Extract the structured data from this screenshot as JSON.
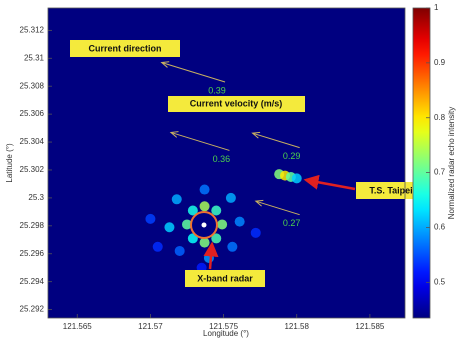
{
  "chart_data": {
    "type": "heatmap",
    "xlabel": "Longitude (°)",
    "ylabel": "Latitude (°)",
    "colorbar_label": "Normalized radar echo intensity",
    "colormap": "jet",
    "xlim": [
      121.563,
      121.5874
    ],
    "ylim": [
      25.2914,
      25.3136
    ],
    "xticks": [
      121.565,
      121.57,
      121.575,
      121.58,
      121.585
    ],
    "yticks": [
      25.292,
      25.294,
      25.296,
      25.298,
      25.3,
      25.302,
      25.304,
      25.306,
      25.308,
      25.31,
      25.312
    ],
    "clim": [
      0.435,
      1
    ],
    "cticks": [
      0.5,
      0.6,
      0.7,
      0.8,
      0.9,
      1
    ],
    "echo": {
      "x": [
        121.5749,
        121.5745,
        121.5737,
        121.5729,
        121.5725,
        121.5729,
        121.5737,
        121.5745,
        121.5761,
        121.5755,
        121.5737,
        121.5718,
        121.5713,
        121.572,
        121.574,
        121.5756,
        121.57,
        121.5772,
        121.5735,
        121.5705,
        121.5788,
        121.5792,
        121.5796,
        121.58
      ],
      "y": [
        25.2981,
        25.2991,
        25.2994,
        25.2991,
        25.2981,
        25.2971,
        25.2968,
        25.2971,
        25.2983,
        25.3,
        25.3006,
        25.2999,
        25.2979,
        25.2962,
        25.2957,
        25.2965,
        25.2985,
        25.2975,
        25.295,
        25.2965,
        25.3017,
        25.3016,
        25.3015,
        25.3014
      ],
      "values": [
        0.72,
        0.68,
        0.74,
        0.66,
        0.7,
        0.65,
        0.72,
        0.69,
        0.58,
        0.6,
        0.57,
        0.6,
        0.62,
        0.56,
        0.59,
        0.57,
        0.54,
        0.53,
        0.52,
        0.53,
        0.72,
        0.8,
        0.7,
        0.62
      ]
    },
    "current": {
      "color": "#c8b060",
      "x": [
        121.5751,
        121.5754,
        121.5802,
        121.5802
      ],
      "y": [
        25.3083,
        25.3034,
        25.3036,
        25.2988
      ],
      "values": [
        0.39,
        0.36,
        0.29,
        0.27
      ]
    },
    "annotations": [
      "Current direction",
      "Current velocity (m/s)",
      "T.S. Taipei",
      "X-band radar"
    ]
  }
}
